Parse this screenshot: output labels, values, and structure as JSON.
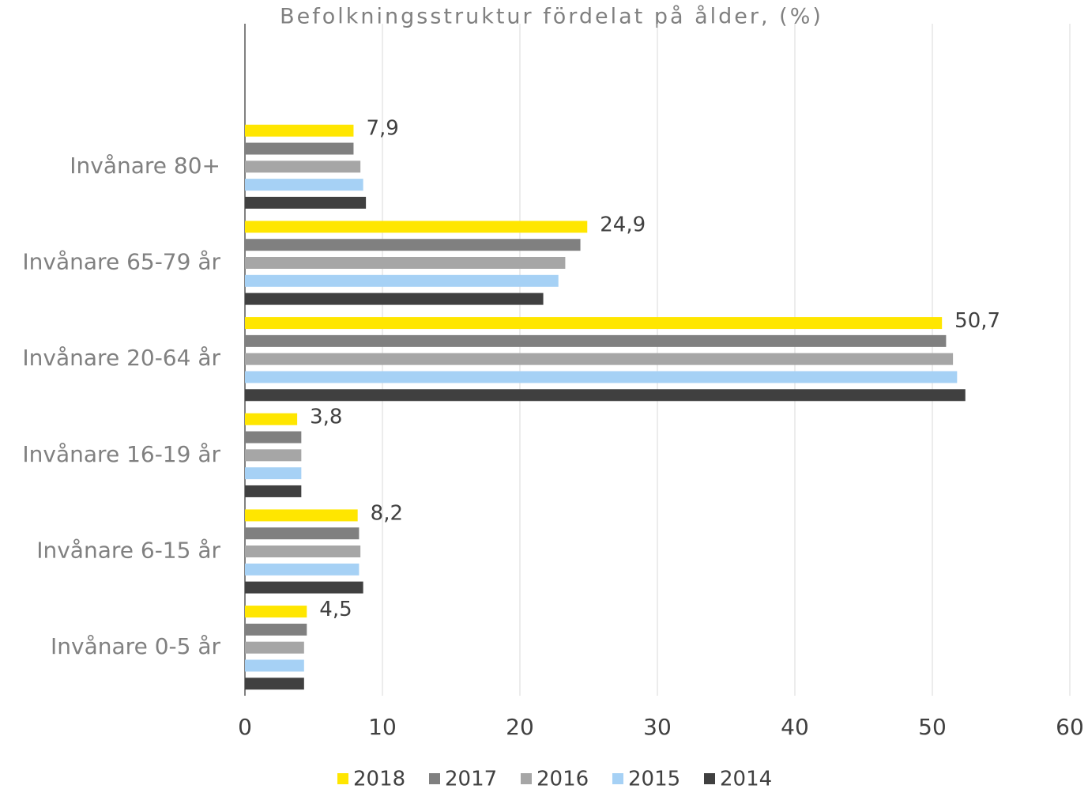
{
  "chart_data": {
    "type": "hbar",
    "title": "Befolkningsstruktur fördelat på ålder, (%)",
    "categories": [
      "Invånare 80+",
      "Invånare 65-79 år",
      "Invånare 20-64 år",
      "Invånare 16-19 år",
      "Invånare 6-15 år",
      "Invånare 0-5 år"
    ],
    "series": [
      {
        "name": "2018",
        "color": "#ffe600",
        "values": [
          7.9,
          24.9,
          50.7,
          3.8,
          8.2,
          4.5
        ],
        "value_labels": [
          "7,9",
          "24,9",
          "50,7",
          "3,8",
          "8,2",
          "4,5"
        ]
      },
      {
        "name": "2017",
        "color": "#808080",
        "values": [
          7.9,
          24.4,
          51.0,
          4.1,
          8.3,
          4.5
        ]
      },
      {
        "name": "2016",
        "color": "#a6a6a6",
        "values": [
          8.4,
          23.3,
          51.5,
          4.1,
          8.4,
          4.3
        ]
      },
      {
        "name": "2015",
        "color": "#a6d1f5",
        "values": [
          8.6,
          22.8,
          51.8,
          4.1,
          8.3,
          4.3
        ]
      },
      {
        "name": "2014",
        "color": "#404040",
        "values": [
          8.8,
          21.7,
          52.4,
          4.1,
          8.6,
          4.3
        ]
      }
    ],
    "xlim": [
      0,
      60
    ],
    "xticks": [
      0,
      10,
      20,
      30,
      40,
      50,
      60
    ],
    "grid": true,
    "legend": "bottom"
  }
}
